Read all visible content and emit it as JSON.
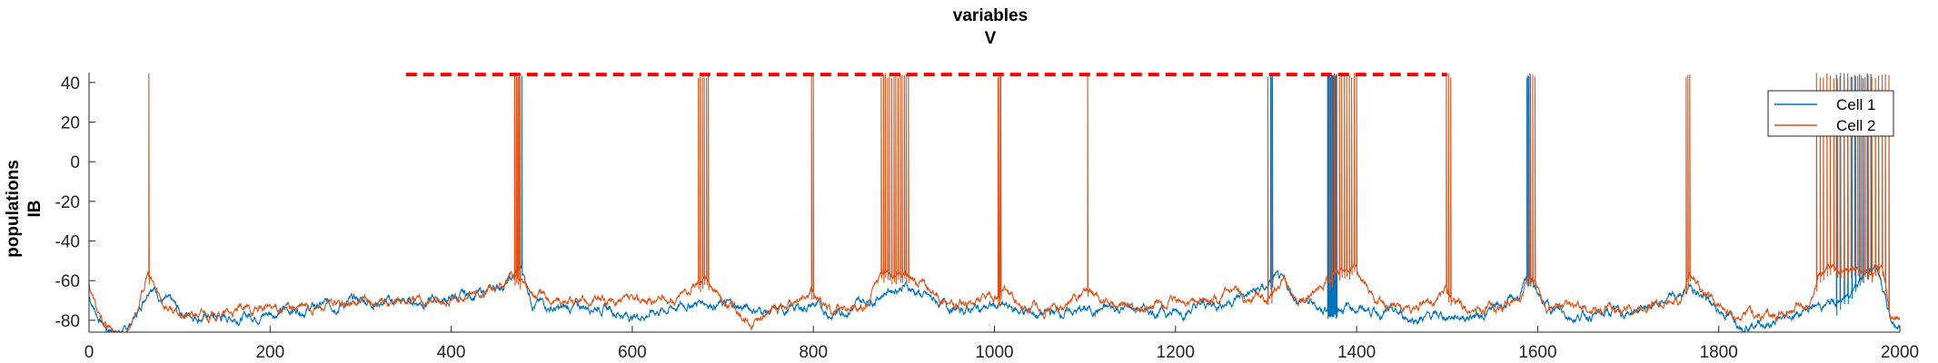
{
  "chart_data": {
    "type": "line",
    "title": [
      "variables",
      "V"
    ],
    "ylabel": [
      "populations",
      "IB"
    ],
    "xlabel": "",
    "xlim": [
      0,
      2000
    ],
    "ylim": [
      -86,
      45
    ],
    "xticks": [
      0,
      200,
      400,
      600,
      800,
      1000,
      1200,
      1400,
      1600,
      1800,
      2000
    ],
    "yticks": [
      -80,
      -60,
      -40,
      -20,
      0,
      20,
      40
    ],
    "grid": false,
    "legend_position": "top-right",
    "series": [
      {
        "name": "Cell 1",
        "color": "#0072BD",
        "baseline_points": [
          [
            0,
            -68
          ],
          [
            10,
            -78
          ],
          [
            20,
            -84
          ],
          [
            30,
            -85
          ],
          [
            40,
            -86
          ],
          [
            55,
            -75
          ],
          [
            68,
            -60
          ],
          [
            80,
            -68
          ],
          [
            100,
            -76
          ],
          [
            150,
            -79
          ],
          [
            200,
            -76
          ],
          [
            250,
            -73
          ],
          [
            300,
            -70
          ],
          [
            350,
            -71
          ],
          [
            400,
            -69
          ],
          [
            440,
            -66
          ],
          [
            465,
            -60
          ],
          [
            478,
            -55
          ],
          [
            490,
            -70
          ],
          [
            520,
            -75
          ],
          [
            560,
            -72
          ],
          [
            600,
            -78
          ],
          [
            640,
            -74
          ],
          [
            680,
            -70
          ],
          [
            700,
            -72
          ],
          [
            760,
            -76
          ],
          [
            800,
            -72
          ],
          [
            820,
            -77
          ],
          [
            860,
            -70
          ],
          [
            880,
            -65
          ],
          [
            900,
            -62
          ],
          [
            930,
            -70
          ],
          [
            960,
            -75
          ],
          [
            1000,
            -73
          ],
          [
            1050,
            -77
          ],
          [
            1100,
            -75
          ],
          [
            1150,
            -74
          ],
          [
            1200,
            -76
          ],
          [
            1250,
            -71
          ],
          [
            1300,
            -64
          ],
          [
            1310,
            -58
          ],
          [
            1330,
            -68
          ],
          [
            1360,
            -74
          ],
          [
            1380,
            -72
          ],
          [
            1420,
            -75
          ],
          [
            1460,
            -79
          ],
          [
            1500,
            -78
          ],
          [
            1540,
            -77
          ],
          [
            1580,
            -68
          ],
          [
            1592,
            -58
          ],
          [
            1605,
            -72
          ],
          [
            1640,
            -78
          ],
          [
            1700,
            -76
          ],
          [
            1760,
            -68
          ],
          [
            1770,
            -62
          ],
          [
            1790,
            -72
          ],
          [
            1820,
            -80
          ],
          [
            1860,
            -82
          ],
          [
            1900,
            -74
          ],
          [
            1940,
            -70
          ],
          [
            1955,
            -58
          ],
          [
            1975,
            -53
          ],
          [
            1990,
            -80
          ],
          [
            2000,
            -83
          ]
        ],
        "bursts": [
          [
            470,
            478,
            4
          ],
          [
            1305,
            1307,
            2
          ],
          [
            1368,
            1378,
            12
          ],
          [
            1588,
            1592,
            3
          ],
          [
            1930,
            1968,
            10
          ]
        ]
      },
      {
        "name": "Cell 2",
        "color": "#D95319",
        "baseline_points": [
          [
            0,
            -62
          ],
          [
            12,
            -80
          ],
          [
            25,
            -86
          ],
          [
            40,
            -86
          ],
          [
            55,
            -72
          ],
          [
            65,
            -57
          ],
          [
            80,
            -70
          ],
          [
            100,
            -78
          ],
          [
            150,
            -77
          ],
          [
            200,
            -74
          ],
          [
            250,
            -74
          ],
          [
            300,
            -72
          ],
          [
            350,
            -70
          ],
          [
            400,
            -70
          ],
          [
            440,
            -66
          ],
          [
            460,
            -62
          ],
          [
            470,
            -56
          ],
          [
            490,
            -66
          ],
          [
            530,
            -72
          ],
          [
            560,
            -70
          ],
          [
            600,
            -72
          ],
          [
            650,
            -68
          ],
          [
            670,
            -62
          ],
          [
            680,
            -58
          ],
          [
            700,
            -70
          ],
          [
            730,
            -80
          ],
          [
            760,
            -75
          ],
          [
            800,
            -66
          ],
          [
            820,
            -74
          ],
          [
            860,
            -72
          ],
          [
            875,
            -56
          ],
          [
            905,
            -55
          ],
          [
            930,
            -66
          ],
          [
            960,
            -73
          ],
          [
            1000,
            -70
          ],
          [
            1010,
            -64
          ],
          [
            1030,
            -74
          ],
          [
            1080,
            -73
          ],
          [
            1100,
            -64
          ],
          [
            1120,
            -72
          ],
          [
            1160,
            -75
          ],
          [
            1200,
            -72
          ],
          [
            1250,
            -70
          ],
          [
            1300,
            -67
          ],
          [
            1320,
            -60
          ],
          [
            1340,
            -70
          ],
          [
            1360,
            -66
          ],
          [
            1375,
            -56
          ],
          [
            1400,
            -55
          ],
          [
            1420,
            -70
          ],
          [
            1460,
            -75
          ],
          [
            1490,
            -70
          ],
          [
            1500,
            -65
          ],
          [
            1520,
            -75
          ],
          [
            1560,
            -74
          ],
          [
            1580,
            -70
          ],
          [
            1590,
            -58
          ],
          [
            1610,
            -72
          ],
          [
            1650,
            -76
          ],
          [
            1700,
            -74
          ],
          [
            1760,
            -70
          ],
          [
            1768,
            -56
          ],
          [
            1785,
            -68
          ],
          [
            1820,
            -78
          ],
          [
            1860,
            -78
          ],
          [
            1900,
            -72
          ],
          [
            1910,
            -56
          ],
          [
            1935,
            -55
          ],
          [
            1960,
            -54
          ],
          [
            1980,
            -54
          ],
          [
            1990,
            -80
          ],
          [
            2000,
            -80
          ]
        ],
        "bursts": [
          [
            66,
            66,
            1
          ],
          [
            470,
            476,
            4
          ],
          [
            673,
            684,
            6
          ],
          [
            798,
            800,
            2
          ],
          [
            875,
            905,
            14
          ],
          [
            1004,
            1007,
            3
          ],
          [
            1103,
            1103,
            1
          ],
          [
            1302,
            1306,
            2
          ],
          [
            1370,
            1400,
            12
          ],
          [
            1499,
            1504,
            3
          ],
          [
            1589,
            1597,
            4
          ],
          [
            1764,
            1768,
            3
          ],
          [
            1908,
            1988,
            22
          ]
        ]
      }
    ],
    "annotations": [
      {
        "type": "dashed-line",
        "color": "#FF0000",
        "x_start": 350,
        "x_end": 1500,
        "y": 44
      }
    ]
  }
}
